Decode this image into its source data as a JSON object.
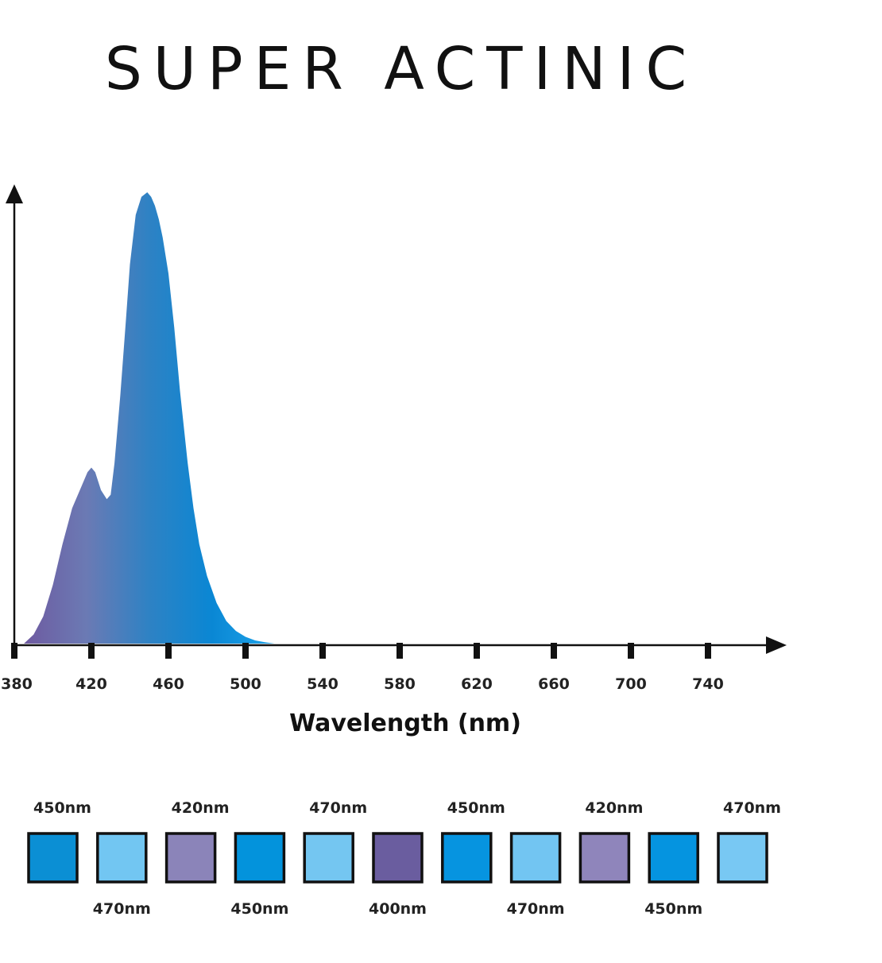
{
  "title": "SUPER ACTINIC",
  "chart_data": {
    "type": "area",
    "title": "SUPER ACTINIC",
    "xlabel": "Wavelength (nm)",
    "ylabel": "",
    "xlim": [
      380,
      780
    ],
    "ylim": [
      0,
      1
    ],
    "grid": false,
    "x_ticks": [
      380,
      420,
      460,
      500,
      540,
      580,
      620,
      660,
      700,
      740
    ],
    "x": [
      385,
      390,
      395,
      400,
      405,
      410,
      415,
      418,
      420,
      422,
      425,
      428,
      430,
      432,
      435,
      438,
      440,
      443,
      446,
      449,
      451,
      453,
      455,
      457,
      460,
      463,
      466,
      470,
      473,
      476,
      480,
      485,
      490,
      495,
      500,
      505,
      510,
      515
    ],
    "y": [
      0.0,
      0.02,
      0.06,
      0.13,
      0.22,
      0.3,
      0.35,
      0.38,
      0.39,
      0.38,
      0.34,
      0.32,
      0.33,
      0.4,
      0.55,
      0.72,
      0.84,
      0.95,
      0.99,
      1.0,
      0.99,
      0.97,
      0.94,
      0.9,
      0.82,
      0.7,
      0.56,
      0.4,
      0.3,
      0.22,
      0.15,
      0.09,
      0.05,
      0.028,
      0.015,
      0.007,
      0.003,
      0.0
    ],
    "gradient_colors": [
      "#6e5aa0",
      "#6b7ab4",
      "#2e82c4",
      "#0a87d4",
      "#1ea4ea"
    ]
  },
  "leds": {
    "squares": [
      {
        "nm": "450nm",
        "color": "#0b8fd4"
      },
      {
        "nm": "470nm",
        "color": "#72c6f2"
      },
      {
        "nm": "420nm",
        "color": "#8b84b9"
      },
      {
        "nm": "450nm",
        "color": "#0393dc"
      },
      {
        "nm": "470nm",
        "color": "#74c6f1"
      },
      {
        "nm": "400nm",
        "color": "#6a5d9f"
      },
      {
        "nm": "450nm",
        "color": "#0694e0"
      },
      {
        "nm": "470nm",
        "color": "#72c5f2"
      },
      {
        "nm": "420nm",
        "color": "#8f85bb"
      },
      {
        "nm": "450nm",
        "color": "#0594e0"
      },
      {
        "nm": "470nm",
        "color": "#78c8f3"
      }
    ]
  }
}
